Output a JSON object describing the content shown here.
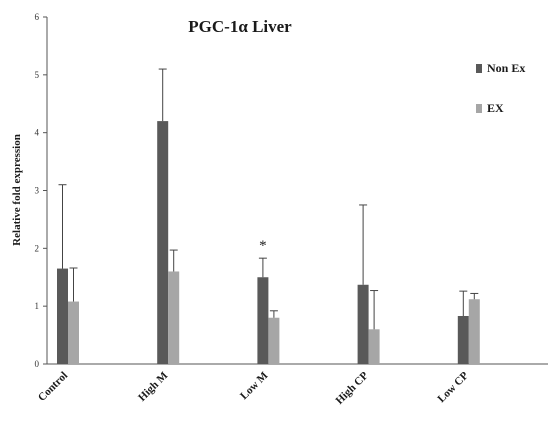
{
  "chart_data": {
    "type": "bar",
    "title": "PGC-1α Liver",
    "ylabel": "Relative fold expression",
    "xlabel": "",
    "ylim": [
      0,
      6
    ],
    "yticks": [
      0,
      1,
      2,
      3,
      4,
      5,
      6
    ],
    "categories": [
      "Control",
      "High M",
      "Low M",
      "High CP",
      "Low CP"
    ],
    "series": [
      {
        "name": "Non Ex",
        "color": "#595959",
        "values": [
          1.65,
          4.2,
          1.5,
          1.37,
          0.83
        ],
        "errors": [
          1.45,
          0.9,
          0.33,
          1.38,
          0.43
        ]
      },
      {
        "name": "EX",
        "color": "#a6a6a6",
        "values": [
          1.08,
          1.6,
          0.8,
          0.6,
          1.12
        ],
        "errors": [
          0.58,
          0.37,
          0.12,
          0.67,
          0.1
        ]
      }
    ],
    "annotations": [
      {
        "category": "Low M",
        "series": "Non Ex",
        "text": "*"
      }
    ],
    "legend_position": "right",
    "grid": false
  }
}
